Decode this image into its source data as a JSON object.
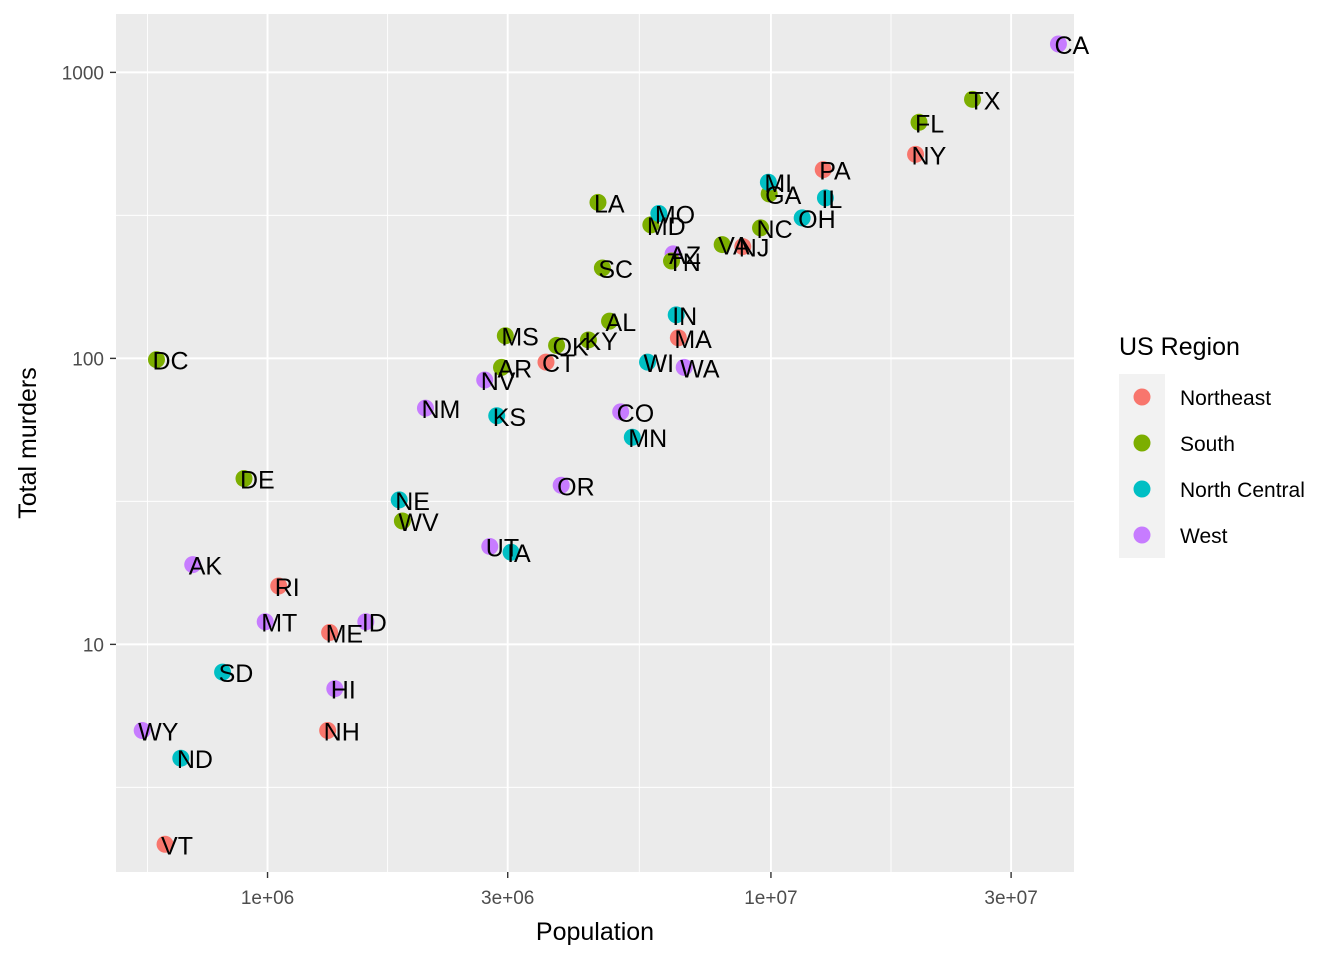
{
  "chart_data": {
    "type": "scatter",
    "xlabel": "Population",
    "ylabel": "Total murders",
    "x_scale": "log10",
    "y_scale": "log10",
    "xlim": [
      500000,
      40000000
    ],
    "ylim": [
      1.6,
      1600
    ],
    "x_ticks": [
      {
        "value": 1000000,
        "label": "1e+06"
      },
      {
        "value": 3000000,
        "label": "3e+06"
      },
      {
        "value": 10000000,
        "label": "1e+07"
      },
      {
        "value": 30000000,
        "label": "3e+07"
      }
    ],
    "y_ticks": [
      {
        "value": 10,
        "label": "10"
      },
      {
        "value": 100,
        "label": "100"
      },
      {
        "value": 1000,
        "label": "1000"
      }
    ],
    "grid": true,
    "legend": {
      "title": "US Region",
      "position": "right",
      "entries": [
        {
          "name": "Northeast",
          "color": "#F8766D"
        },
        {
          "name": "South",
          "color": "#7CAE00"
        },
        {
          "name": "North Central",
          "color": "#00BFC4"
        },
        {
          "name": "West",
          "color": "#C77CFF"
        }
      ]
    },
    "points": [
      {
        "label": "AL",
        "region": "South",
        "population": 4779736,
        "total": 135
      },
      {
        "label": "AK",
        "region": "West",
        "population": 710231,
        "total": 19
      },
      {
        "label": "AZ",
        "region": "West",
        "population": 6392017,
        "total": 232
      },
      {
        "label": "AR",
        "region": "South",
        "population": 2915918,
        "total": 93
      },
      {
        "label": "CA",
        "region": "West",
        "population": 37253956,
        "total": 1257
      },
      {
        "label": "CO",
        "region": "West",
        "population": 5029196,
        "total": 65
      },
      {
        "label": "CT",
        "region": "Northeast",
        "population": 3574097,
        "total": 97
      },
      {
        "label": "DE",
        "region": "South",
        "population": 897934,
        "total": 38
      },
      {
        "label": "DC",
        "region": "South",
        "population": 601723,
        "total": 99
      },
      {
        "label": "FL",
        "region": "South",
        "population": 19687653,
        "total": 669
      },
      {
        "label": "GA",
        "region": "South",
        "population": 9920000,
        "total": 376
      },
      {
        "label": "HI",
        "region": "West",
        "population": 1360301,
        "total": 7
      },
      {
        "label": "ID",
        "region": "West",
        "population": 1567582,
        "total": 12
      },
      {
        "label": "IL",
        "region": "North Central",
        "population": 12830632,
        "total": 364
      },
      {
        "label": "IN",
        "region": "North Central",
        "population": 6483802,
        "total": 142
      },
      {
        "label": "IA",
        "region": "North Central",
        "population": 3046355,
        "total": 21
      },
      {
        "label": "KS",
        "region": "North Central",
        "population": 2853118,
        "total": 63
      },
      {
        "label": "KY",
        "region": "South",
        "population": 4339367,
        "total": 116
      },
      {
        "label": "LA",
        "region": "South",
        "population": 4533372,
        "total": 351
      },
      {
        "label": "ME",
        "region": "Northeast",
        "population": 1328361,
        "total": 11
      },
      {
        "label": "MD",
        "region": "South",
        "population": 5773552,
        "total": 293
      },
      {
        "label": "MA",
        "region": "Northeast",
        "population": 6547629,
        "total": 118
      },
      {
        "label": "MI",
        "region": "North Central",
        "population": 9883640,
        "total": 413
      },
      {
        "label": "MN",
        "region": "North Central",
        "population": 5303925,
        "total": 53
      },
      {
        "label": "MS",
        "region": "South",
        "population": 2967297,
        "total": 120
      },
      {
        "label": "MO",
        "region": "North Central",
        "population": 5988927,
        "total": 321
      },
      {
        "label": "MT",
        "region": "West",
        "population": 989415,
        "total": 12
      },
      {
        "label": "NE",
        "region": "North Central",
        "population": 1826341,
        "total": 32
      },
      {
        "label": "NV",
        "region": "West",
        "population": 2700551,
        "total": 84
      },
      {
        "label": "NH",
        "region": "Northeast",
        "population": 1316470,
        "total": 5
      },
      {
        "label": "NJ",
        "region": "Northeast",
        "population": 8791894,
        "total": 246
      },
      {
        "label": "NM",
        "region": "West",
        "population": 2059179,
        "total": 67
      },
      {
        "label": "NY",
        "region": "Northeast",
        "population": 19378102,
        "total": 517
      },
      {
        "label": "NC",
        "region": "South",
        "population": 9535483,
        "total": 286
      },
      {
        "label": "ND",
        "region": "North Central",
        "population": 672591,
        "total": 4
      },
      {
        "label": "OH",
        "region": "North Central",
        "population": 11536504,
        "total": 310
      },
      {
        "label": "OK",
        "region": "South",
        "population": 3751351,
        "total": 111
      },
      {
        "label": "OR",
        "region": "West",
        "population": 3831074,
        "total": 36
      },
      {
        "label": "PA",
        "region": "Northeast",
        "population": 12702379,
        "total": 457
      },
      {
        "label": "RI",
        "region": "Northeast",
        "population": 1052567,
        "total": 16
      },
      {
        "label": "SC",
        "region": "South",
        "population": 4625364,
        "total": 207
      },
      {
        "label": "SD",
        "region": "North Central",
        "population": 814180,
        "total": 8
      },
      {
        "label": "TN",
        "region": "South",
        "population": 6346105,
        "total": 219
      },
      {
        "label": "TX",
        "region": "South",
        "population": 25145561,
        "total": 805
      },
      {
        "label": "UT",
        "region": "West",
        "population": 2763885,
        "total": 22
      },
      {
        "label": "VT",
        "region": "Northeast",
        "population": 625741,
        "total": 2
      },
      {
        "label": "VA",
        "region": "South",
        "population": 8001024,
        "total": 250
      },
      {
        "label": "WA",
        "region": "West",
        "population": 6724540,
        "total": 93
      },
      {
        "label": "WV",
        "region": "South",
        "population": 1852994,
        "total": 27
      },
      {
        "label": "WI",
        "region": "North Central",
        "population": 5686986,
        "total": 97
      },
      {
        "label": "WY",
        "region": "West",
        "population": 563626,
        "total": 5
      }
    ]
  }
}
